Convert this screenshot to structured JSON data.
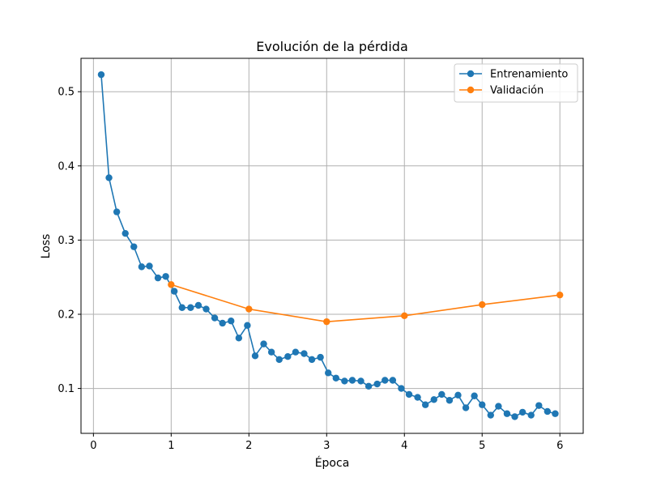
{
  "chart_data": {
    "type": "line",
    "title": "Evolución de la pérdida",
    "xlabel": "Época",
    "ylabel": "Loss",
    "xlim": [
      -0.16,
      6.3
    ],
    "ylim": [
      0.0395,
      0.545
    ],
    "xticks": [
      0,
      1,
      2,
      3,
      4,
      5,
      6
    ],
    "yticks": [
      0.1,
      0.2,
      0.3,
      0.4,
      0.5
    ],
    "xtick_labels": [
      "0",
      "1",
      "2",
      "3",
      "4",
      "5",
      "6"
    ],
    "ytick_labels": [
      "0.1",
      "0.2",
      "0.3",
      "0.4",
      "0.5"
    ],
    "grid": true,
    "legend_position": "top-right",
    "series": [
      {
        "name": "Entrenamiento",
        "color": "#1f77b4",
        "marker": "circle",
        "x": [
          0.1,
          0.2,
          0.3,
          0.41,
          0.52,
          0.62,
          0.72,
          0.83,
          0.93,
          1.04,
          1.14,
          1.25,
          1.35,
          1.45,
          1.56,
          1.66,
          1.77,
          1.87,
          1.98,
          2.08,
          2.19,
          2.29,
          2.39,
          2.5,
          2.6,
          2.71,
          2.81,
          2.92,
          3.02,
          3.12,
          3.23,
          3.33,
          3.44,
          3.54,
          3.65,
          3.75,
          3.85,
          3.96,
          4.06,
          4.17,
          4.27,
          4.38,
          4.48,
          4.58,
          4.69,
          4.79,
          4.9,
          5.0,
          5.11,
          5.21,
          5.32,
          5.42,
          5.52,
          5.63,
          5.73,
          5.84,
          5.94
        ],
        "y": [
          0.523,
          0.384,
          0.338,
          0.309,
          0.291,
          0.264,
          0.265,
          0.249,
          0.251,
          0.231,
          0.209,
          0.209,
          0.212,
          0.207,
          0.195,
          0.188,
          0.191,
          0.168,
          0.185,
          0.144,
          0.16,
          0.149,
          0.139,
          0.143,
          0.149,
          0.147,
          0.139,
          0.142,
          0.121,
          0.114,
          0.11,
          0.111,
          0.11,
          0.103,
          0.106,
          0.111,
          0.111,
          0.1,
          0.092,
          0.088,
          0.078,
          0.085,
          0.092,
          0.084,
          0.091,
          0.074,
          0.09,
          0.078,
          0.064,
          0.076,
          0.066,
          0.062,
          0.068,
          0.064,
          0.077,
          0.069,
          0.066
        ]
      },
      {
        "name": "Validación",
        "color": "#ff7f0e",
        "marker": "circle",
        "x": [
          1,
          2,
          3,
          4,
          5,
          6
        ],
        "y": [
          0.24,
          0.207,
          0.19,
          0.198,
          0.213,
          0.226
        ]
      }
    ]
  }
}
